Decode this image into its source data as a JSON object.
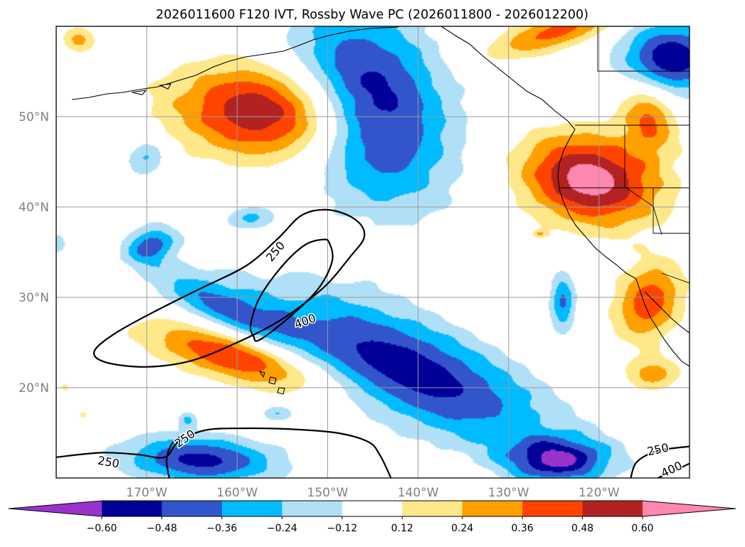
{
  "chart_data": {
    "type": "heatmap",
    "title": "2026011600 F120 IVT, Rossby Wave PC (2026011800 - 2026012200)",
    "xlabel": "",
    "ylabel": "",
    "xlim": [
      -180,
      -110
    ],
    "ylim": [
      10,
      60
    ],
    "grid": true,
    "x_ticks": [
      {
        "value": -170,
        "label": "170°W"
      },
      {
        "value": -160,
        "label": "160°W"
      },
      {
        "value": -150,
        "label": "150°W"
      },
      {
        "value": -140,
        "label": "140°W"
      },
      {
        "value": -130,
        "label": "130°W"
      },
      {
        "value": -120,
        "label": "120°W"
      }
    ],
    "y_ticks": [
      {
        "value": 20,
        "label": "20°N"
      },
      {
        "value": 30,
        "label": "30°N"
      },
      {
        "value": 40,
        "label": "40°N"
      },
      {
        "value": 50,
        "label": "50°N"
      }
    ],
    "colorbar": {
      "placement": "bottom",
      "extend": "both",
      "levels": [
        -0.72,
        -0.6,
        -0.48,
        -0.36,
        -0.24,
        -0.12,
        0.12,
        0.24,
        0.36,
        0.48,
        0.6,
        0.72
      ],
      "tick_labels": [
        "−0.60",
        "−0.48",
        "−0.36",
        "−0.24",
        "−0.12",
        "0.12",
        "0.24",
        "0.36",
        "0.48",
        "0.60"
      ],
      "colors": [
        "#9933cc",
        "#000099",
        "#3355cc",
        "#00bbff",
        "#b0e0f8",
        "#ffffff",
        "#ffe88a",
        "#ff9f00",
        "#ff4400",
        "#b22222",
        "#ff88b0"
      ]
    },
    "anomalies": [
      {
        "name": "neg-north-central",
        "lon": -145.5,
        "lat": 51,
        "rx": 8,
        "ry": 10.5,
        "rot": 0.5,
        "peak": -0.68
      },
      {
        "name": "neg-central",
        "lon": -141,
        "lat": 22,
        "rx": 17,
        "ry": 5.5,
        "rot": -0.42,
        "peak": -0.55
      },
      {
        "name": "neg-bottom-left",
        "lon": -164,
        "lat": 12,
        "rx": 8.5,
        "ry": 2.6,
        "rot": -0.05,
        "peak": -0.52
      },
      {
        "name": "neg-bottom-right",
        "lon": -124.5,
        "lat": 12,
        "rx": 5.5,
        "ry": 2.4,
        "rot": 0,
        "peak": -0.54
      },
      {
        "name": "neg-top-right",
        "lon": -112,
        "lat": 56.5,
        "rx": 5.5,
        "ry": 4,
        "rot": 0,
        "peak": -0.58
      },
      {
        "name": "neg-hawaii-north",
        "lon": -161,
        "lat": 28.5,
        "rx": 9,
        "ry": 2.6,
        "rot": -0.45,
        "peak": -0.36
      },
      {
        "name": "neg-small-1",
        "lon": -169.5,
        "lat": 35.8,
        "rx": 2.8,
        "ry": 2,
        "rot": 0.3,
        "peak": -0.4
      },
      {
        "name": "neg-small-2",
        "lon": -124,
        "lat": 29.5,
        "rx": 1.4,
        "ry": 3.2,
        "rot": 0,
        "peak": -0.38
      },
      {
        "name": "neg-small-3",
        "lon": -170,
        "lat": 45.5,
        "rx": 2.4,
        "ry": 2,
        "rot": 0.6,
        "peak": -0.27
      },
      {
        "name": "neg-small-4",
        "lon": -158.5,
        "lat": 38.8,
        "rx": 2.6,
        "ry": 1.3,
        "rot": 0,
        "peak": -0.26
      },
      {
        "name": "neg-small-5",
        "lon": -155.5,
        "lat": 17.2,
        "rx": 1.8,
        "ry": 0.9,
        "rot": 0,
        "peak": -0.25
      },
      {
        "name": "neg-small-6",
        "lon": -165.5,
        "lat": 16.5,
        "rx": 1,
        "ry": 0.9,
        "rot": 0,
        "peak": -0.24
      },
      {
        "name": "neg-small-7",
        "lon": -180,
        "lat": 36,
        "rx": 1.2,
        "ry": 1.3,
        "rot": 0,
        "peak": -0.2
      },
      {
        "name": "pos-north",
        "lon": -156,
        "lat": 50.5,
        "rx": 10.5,
        "ry": 5.2,
        "rot": -0.08,
        "peak": 0.66
      },
      {
        "name": "pos-california",
        "lon": -121,
        "lat": 43,
        "rx": 7.5,
        "ry": 4.8,
        "rot": -0.2,
        "peak": 0.68
      },
      {
        "name": "pos-subtropical",
        "lon": -160,
        "lat": 23.5,
        "rx": 10,
        "ry": 2.8,
        "rot": -0.27,
        "peak": 0.52
      },
      {
        "name": "pos-mexico",
        "lon": -114.5,
        "lat": 29.5,
        "rx": 3.5,
        "ry": 4.5,
        "rot": -0.5,
        "peak": 0.44
      },
      {
        "name": "pos-baja-south",
        "lon": -114,
        "lat": 21.5,
        "rx": 3,
        "ry": 1.8,
        "rot": 0,
        "peak": 0.3
      },
      {
        "name": "pos-top-center",
        "lon": -124.5,
        "lat": 59.5,
        "rx": 8,
        "ry": 2,
        "rot": 0.3,
        "peak": 0.4
      },
      {
        "name": "pos-top-right",
        "lon": -114.5,
        "lat": 50,
        "rx": 3,
        "ry": 4,
        "rot": 0.3,
        "peak": 0.38
      },
      {
        "name": "pos-top-left",
        "lon": -177.5,
        "lat": 58.5,
        "rx": 1.8,
        "ry": 1.4,
        "rot": 0,
        "peak": 0.28
      },
      {
        "name": "pos-small-1",
        "lon": -179,
        "lat": 20,
        "rx": 0.5,
        "ry": 0.5,
        "rot": 0,
        "peak": 0.18
      },
      {
        "name": "pos-small-2",
        "lon": -177,
        "lat": 17,
        "rx": 0.5,
        "ry": 0.5,
        "rot": 0,
        "peak": 0.18
      },
      {
        "name": "pos-small-3",
        "lon": -126.5,
        "lat": 37,
        "rx": 0.8,
        "ry": 0.4,
        "rot": 0,
        "peak": 0.22
      }
    ],
    "contour_levels": [
      250,
      400
    ],
    "contours": [
      {
        "level": 250,
        "closed": true,
        "points": [
          [
            -175.8,
            24.0
          ],
          [
            -173.5,
            26.0
          ],
          [
            -169.0,
            28.5
          ],
          [
            -164.0,
            31.0
          ],
          [
            -159.0,
            33.5
          ],
          [
            -155.5,
            36.5
          ],
          [
            -153.0,
            39.0
          ],
          [
            -150.5,
            39.7
          ],
          [
            -148.0,
            39.2
          ],
          [
            -146.3,
            38.0
          ],
          [
            -146.0,
            36.5
          ],
          [
            -147.5,
            34.5
          ],
          [
            -150.0,
            31.5
          ],
          [
            -153.0,
            29.0
          ],
          [
            -156.0,
            27.0
          ],
          [
            -160.0,
            25.0
          ],
          [
            -165.0,
            23.0
          ],
          [
            -170.0,
            22.3
          ],
          [
            -174.5,
            22.8
          ]
        ]
      },
      {
        "level": 400,
        "closed": true,
        "points": [
          [
            -157.5,
            25.3
          ],
          [
            -154.0,
            28.0
          ],
          [
            -151.0,
            31.0
          ],
          [
            -149.5,
            34.0
          ],
          [
            -149.8,
            36.0
          ],
          [
            -150.5,
            36.4
          ],
          [
            -152.5,
            35.8
          ],
          [
            -155.0,
            33.5
          ],
          [
            -157.5,
            30.0
          ],
          [
            -158.5,
            27.0
          ],
          [
            -158.2,
            25.7
          ]
        ]
      },
      {
        "level": 250,
        "closed": false,
        "points": [
          [
            -180.0,
            12.3
          ],
          [
            -175.0,
            12.8
          ],
          [
            -171.0,
            12.6
          ],
          [
            -168.0,
            12.3
          ],
          [
            -166.5,
            14.0
          ],
          [
            -163.5,
            15.3
          ],
          [
            -159.0,
            15.5
          ],
          [
            -154.0,
            15.4
          ],
          [
            -149.0,
            15.0
          ],
          [
            -145.5,
            14.0
          ],
          [
            -144.2,
            12.5
          ],
          [
            -143.0,
            10.0
          ]
        ]
      },
      {
        "level": 250,
        "closed": false,
        "points": [
          [
            -167.5,
            10.0
          ],
          [
            -167.8,
            12.0
          ],
          [
            -167.2,
            13.8
          ],
          [
            -166.0,
            14.8
          ]
        ]
      },
      {
        "level": 250,
        "closed": false,
        "points": [
          [
            -116.5,
            10.0
          ],
          [
            -115.8,
            11.8
          ],
          [
            -113.5,
            13.0
          ],
          [
            -110.0,
            13.5
          ]
        ]
      },
      {
        "level": 400,
        "closed": false,
        "points": [
          [
            -113.5,
            10.0
          ],
          [
            -111.5,
            10.9
          ],
          [
            -110.0,
            11.6
          ]
        ]
      }
    ],
    "contour_labels": [
      {
        "text": "250",
        "lon": -155.8,
        "lat": 35.1,
        "rot": -50
      },
      {
        "text": "400",
        "lon": -152.5,
        "lat": 27.4,
        "rot": -20
      },
      {
        "text": "250",
        "lon": -174.2,
        "lat": 11.8,
        "rot": 10
      },
      {
        "text": "250",
        "lon": -165.8,
        "lat": 14.4,
        "rot": -35
      },
      {
        "text": "250",
        "lon": -113.5,
        "lat": 13.2,
        "rot": -12
      },
      {
        "text": "400",
        "lon": -112.0,
        "lat": 11.0,
        "rot": -25
      }
    ]
  }
}
